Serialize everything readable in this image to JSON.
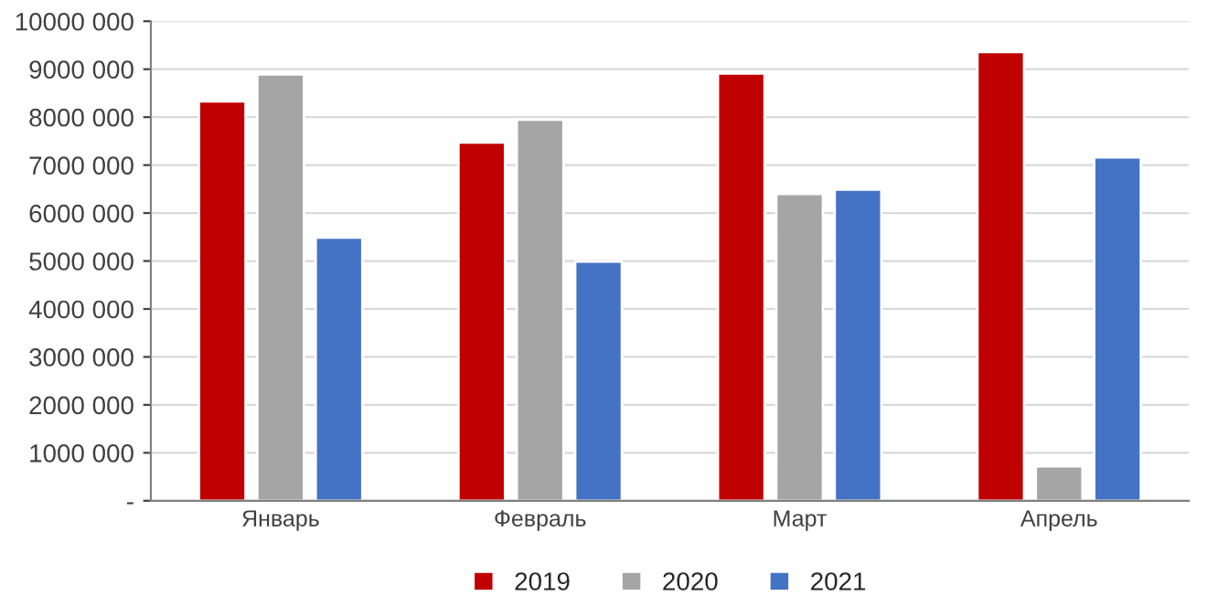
{
  "chart_data": {
    "type": "bar",
    "categories": [
      "Январь",
      "Февраль",
      "Март",
      "Апрель"
    ],
    "series": [
      {
        "name": "2019",
        "color": "#c00000",
        "values": [
          8330000,
          7470000,
          8910000,
          9360000
        ]
      },
      {
        "name": "2020",
        "color": "#a5a5a5",
        "values": [
          8890000,
          7950000,
          6400000,
          720000
        ]
      },
      {
        "name": "2021",
        "color": "#4472c4",
        "values": [
          5490000,
          4990000,
          6490000,
          7160000
        ]
      }
    ],
    "ylim": [
      0,
      10000000
    ],
    "yticks": [
      {
        "value": 0,
        "label": "-"
      },
      {
        "value": 1000000,
        "label": "1000 000"
      },
      {
        "value": 2000000,
        "label": "2000 000"
      },
      {
        "value": 3000000,
        "label": "3000 000"
      },
      {
        "value": 4000000,
        "label": "4000 000"
      },
      {
        "value": 5000000,
        "label": "5000 000"
      },
      {
        "value": 6000000,
        "label": "6000 000"
      },
      {
        "value": 7000000,
        "label": "7000 000"
      },
      {
        "value": 8000000,
        "label": "8000 000"
      },
      {
        "value": 9000000,
        "label": "9000 000"
      },
      {
        "value": 10000000,
        "label": "10000 000"
      }
    ],
    "grid": "y",
    "legend": "bottom"
  }
}
